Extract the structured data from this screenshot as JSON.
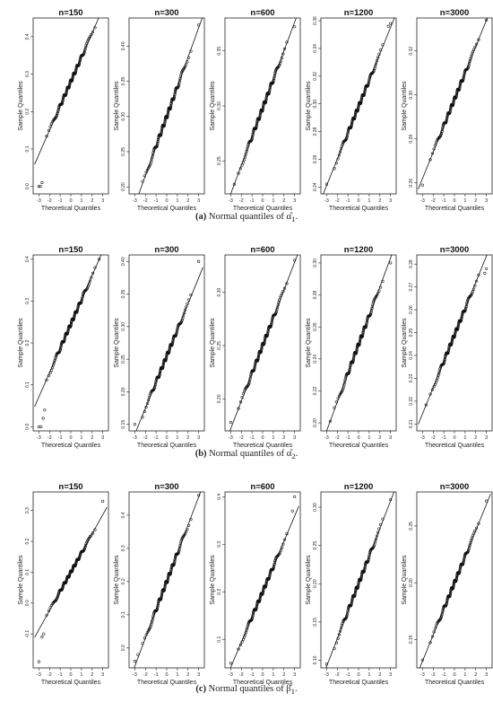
{
  "figure": {
    "axis_x_label": "Theoretical Quantiles",
    "axis_y_label": "Sample Quantiles",
    "x_ticks": [
      "-3",
      "-2",
      "-1",
      "0",
      "1",
      "2",
      "3"
    ]
  },
  "rows": [
    {
      "caption_letter": "(a)",
      "caption_text": "Normal quantiles of α̂",
      "caption_sub": "1",
      "panels": [
        {
          "title": "n=150",
          "ylim": [
            -0.02,
            0.45
          ],
          "y_ticks": [
            0.0,
            0.1,
            0.2,
            0.3,
            0.4
          ],
          "y_tick_labels": [
            "0.0",
            "0.1",
            "0.2",
            "0.3",
            "0.4"
          ],
          "mean": 0.28,
          "sd": 0.065,
          "lower_tail": [
            [
              -3.0,
              0.0
            ],
            [
              -2.85,
              0.0
            ],
            [
              -2.7,
              0.01
            ]
          ],
          "upper_tail": []
        },
        {
          "title": "n=300",
          "ylim": [
            0.19,
            0.44
          ],
          "y_ticks": [
            0.2,
            0.25,
            0.3,
            0.35,
            0.4
          ],
          "y_tick_labels": [
            "0.20",
            "0.25",
            "0.30",
            "0.35",
            "0.40"
          ],
          "mean": 0.3,
          "sd": 0.042,
          "lower_tail": [],
          "upper_tail": [
            [
              3.0,
              0.43
            ]
          ]
        },
        {
          "title": "n=600",
          "ylim": [
            0.22,
            0.38
          ],
          "y_ticks": [
            0.25,
            0.3,
            0.35
          ],
          "y_tick_labels": [
            "0.25",
            "0.30",
            "0.35"
          ],
          "mean": 0.298,
          "sd": 0.026,
          "lower_tail": [],
          "upper_tail": [
            [
              3.0,
              0.372
            ]
          ]
        },
        {
          "title": "n=1200",
          "ylim": [
            0.235,
            0.362
          ],
          "y_ticks": [
            0.24,
            0.26,
            0.28,
            0.3,
            0.32,
            0.34,
            0.36
          ],
          "y_tick_labels": [
            "0.24",
            "0.26",
            "0.28",
            "0.30",
            "0.32",
            "0.34",
            "0.36"
          ],
          "mean": 0.298,
          "sd": 0.019,
          "lower_tail": [
            [
              -3.0,
              0.242
            ]
          ],
          "upper_tail": [
            [
              2.8,
              0.356
            ],
            [
              3.0,
              0.358
            ]
          ]
        },
        {
          "title": "n=3000",
          "ylim": [
            0.255,
            0.335
          ],
          "y_ticks": [
            0.26,
            0.28,
            0.3,
            0.32
          ],
          "y_tick_labels": [
            "0.26",
            "0.28",
            "0.30",
            "0.32"
          ],
          "mean": 0.298,
          "sd": 0.012,
          "lower_tail": [
            [
              -3.0,
              0.259
            ]
          ],
          "upper_tail": [
            [
              3.0,
              0.334
            ]
          ]
        }
      ]
    },
    {
      "caption_letter": "(b)",
      "caption_text": "Normal quantiles of α̂",
      "caption_sub": "2",
      "panels": [
        {
          "title": "n=150",
          "ylim": [
            -0.01,
            0.41
          ],
          "y_ticks": [
            0.0,
            0.1,
            0.2,
            0.3,
            0.4
          ],
          "y_tick_labels": [
            "0.0",
            "0.1",
            "0.2",
            "0.3",
            "0.4"
          ],
          "mean": 0.245,
          "sd": 0.058,
          "lower_tail": [
            [
              -3.0,
              0.0
            ],
            [
              -2.8,
              0.0
            ],
            [
              -2.6,
              0.02
            ],
            [
              -2.45,
              0.04
            ]
          ],
          "upper_tail": []
        },
        {
          "title": "n=300",
          "ylim": [
            0.14,
            0.41
          ],
          "y_ticks": [
            0.15,
            0.2,
            0.25,
            0.3,
            0.35,
            0.4
          ],
          "y_tick_labels": [
            "0.15",
            "0.20",
            "0.25",
            "0.30",
            "0.35",
            "0.40"
          ],
          "mean": 0.255,
          "sd": 0.04,
          "lower_tail": [
            [
              -3.0,
              0.15
            ]
          ],
          "upper_tail": [
            [
              3.0,
              0.4
            ]
          ]
        },
        {
          "title": "n=600",
          "ylim": [
            0.17,
            0.335
          ],
          "y_ticks": [
            0.2,
            0.25,
            0.3
          ],
          "y_tick_labels": [
            "0.20",
            "0.25",
            "0.30"
          ],
          "mean": 0.25,
          "sd": 0.026,
          "lower_tail": [
            [
              -3.0,
              0.178
            ]
          ],
          "upper_tail": [
            [
              3.0,
              0.33
            ]
          ]
        },
        {
          "title": "n=1200",
          "ylim": [
            0.195,
            0.305
          ],
          "y_ticks": [
            0.2,
            0.22,
            0.24,
            0.26,
            0.28,
            0.3
          ],
          "y_tick_labels": [
            "0.20",
            "0.22",
            "0.24",
            "0.26",
            "0.28",
            "0.30"
          ],
          "mean": 0.249,
          "sd": 0.018,
          "lower_tail": [],
          "upper_tail": [
            [
              3.0,
              0.3
            ]
          ]
        },
        {
          "title": "n=3000",
          "ylim": [
            0.207,
            0.284
          ],
          "y_ticks": [
            0.21,
            0.22,
            0.23,
            0.24,
            0.25,
            0.26,
            0.27,
            0.28
          ],
          "y_tick_labels": [
            "0.21",
            "0.22",
            "0.23",
            "0.24",
            "0.25",
            "0.26",
            "0.27",
            "0.28"
          ],
          "mean": 0.249,
          "sd": 0.0115,
          "lower_tail": [],
          "upper_tail": [
            [
              2.85,
              0.276
            ],
            [
              3.0,
              0.278
            ]
          ]
        }
      ]
    },
    {
      "caption_letter": "(c)",
      "caption_text": "Normal quantiles of β̂",
      "caption_sub": "1",
      "panels": [
        {
          "title": "n=150",
          "ylim": [
            -0.21,
            0.36
          ],
          "y_ticks": [
            -0.1,
            0.0,
            0.1,
            0.2,
            0.3
          ],
          "y_tick_labels": [
            "-0.1",
            "0.0",
            "0.1",
            "0.2",
            "0.3"
          ],
          "mean": 0.1,
          "sd": 0.062,
          "lower_tail": [
            [
              -3.0,
              -0.19
            ],
            [
              -2.7,
              -0.11
            ],
            [
              -2.55,
              -0.1
            ]
          ],
          "upper_tail": [
            [
              3.0,
              0.33
            ]
          ]
        },
        {
          "title": "n=300",
          "ylim": [
            -0.06,
            0.47
          ],
          "y_ticks": [
            0.0,
            0.1,
            0.2,
            0.3,
            0.4
          ],
          "y_tick_labels": [
            "0.0",
            "0.1",
            "0.2",
            "0.3",
            "0.4"
          ],
          "mean": 0.2,
          "sd": 0.085,
          "lower_tail": [
            [
              -3.0,
              -0.04
            ],
            [
              -2.7,
              -0.02
            ]
          ],
          "upper_tail": [
            [
              3.0,
              0.46
            ]
          ]
        },
        {
          "title": "n=600",
          "ylim": [
            0.04,
            0.41
          ],
          "y_ticks": [
            0.1,
            0.2,
            0.3,
            0.4
          ],
          "y_tick_labels": [
            "0.1",
            "0.2",
            "0.3",
            "0.4"
          ],
          "mean": 0.2,
          "sd": 0.053,
          "lower_tail": [
            [
              -3.0,
              0.05
            ]
          ],
          "upper_tail": [
            [
              2.8,
              0.37
            ],
            [
              3.0,
              0.4
            ]
          ]
        },
        {
          "title": "n=1200",
          "ylim": [
            0.09,
            0.32
          ],
          "y_ticks": [
            0.1,
            0.15,
            0.2,
            0.25,
            0.3
          ],
          "y_tick_labels": [
            "0.10",
            "0.15",
            "0.20",
            "0.25",
            "0.30"
          ],
          "mean": 0.2,
          "sd": 0.036,
          "lower_tail": [
            [
              -3.0,
              0.095
            ]
          ],
          "upper_tail": [
            [
              3.0,
              0.31
            ]
          ]
        },
        {
          "title": "n=3000",
          "ylim": [
            0.125,
            0.28
          ],
          "y_ticks": [
            0.15,
            0.2,
            0.25
          ],
          "y_tick_labels": [
            "0.15",
            "0.20",
            "0.25"
          ],
          "mean": 0.2,
          "sd": 0.023,
          "lower_tail": [
            [
              -3.0,
              0.132
            ]
          ],
          "upper_tail": [
            [
              3.0,
              0.272
            ]
          ]
        }
      ]
    }
  ],
  "chart_data": [
    {
      "type": "scatter",
      "subtitle": "n=150",
      "xlabel": "Theoretical Quantiles",
      "ylabel": "Sample Quantiles",
      "xlim": [
        -3,
        3
      ],
      "ylim": [
        -0.02,
        0.45
      ]
    },
    {
      "type": "scatter",
      "subtitle": "n=300",
      "xlabel": "Theoretical Quantiles",
      "ylabel": "Sample Quantiles",
      "xlim": [
        -3,
        3
      ],
      "ylim": [
        0.19,
        0.44
      ]
    },
    {
      "type": "scatter",
      "subtitle": "n=600",
      "xlabel": "Theoretical Quantiles",
      "ylabel": "Sample Quantiles",
      "xlim": [
        -3,
        3
      ],
      "ylim": [
        0.22,
        0.38
      ]
    },
    {
      "type": "scatter",
      "subtitle": "n=1200",
      "xlabel": "Theoretical Quantiles",
      "ylabel": "Sample Quantiles",
      "xlim": [
        -3,
        3
      ],
      "ylim": [
        0.235,
        0.362
      ]
    },
    {
      "type": "scatter",
      "subtitle": "n=3000",
      "xlabel": "Theoretical Quantiles",
      "ylabel": "Sample Quantiles",
      "xlim": [
        -3,
        3
      ],
      "ylim": [
        0.255,
        0.335
      ]
    },
    {
      "type": "scatter",
      "subtitle": "n=150",
      "xlabel": "Theoretical Quantiles",
      "ylabel": "Sample Quantiles",
      "xlim": [
        -3,
        3
      ],
      "ylim": [
        -0.01,
        0.41
      ]
    },
    {
      "type": "scatter",
      "subtitle": "n=300",
      "xlabel": "Theoretical Quantiles",
      "ylabel": "Sample Quantiles",
      "xlim": [
        -3,
        3
      ],
      "ylim": [
        0.14,
        0.41
      ]
    },
    {
      "type": "scatter",
      "subtitle": "n=600",
      "xlabel": "Theoretical Quantiles",
      "ylabel": "Sample Quantiles",
      "xlim": [
        -3,
        3
      ],
      "ylim": [
        0.17,
        0.335
      ]
    },
    {
      "type": "scatter",
      "subtitle": "n=1200",
      "xlabel": "Theoretical Quantiles",
      "ylabel": "Sample Quantiles",
      "xlim": [
        -3,
        3
      ],
      "ylim": [
        0.195,
        0.305
      ]
    },
    {
      "type": "scatter",
      "subtitle": "n=3000",
      "xlabel": "Theoretical Quantiles",
      "ylabel": "Sample Quantiles",
      "xlim": [
        -3,
        3
      ],
      "ylim": [
        0.207,
        0.284
      ]
    },
    {
      "type": "scatter",
      "subtitle": "n=150",
      "xlabel": "Theoretical Quantiles",
      "ylabel": "Sample Quantiles",
      "xlim": [
        -3,
        3
      ],
      "ylim": [
        -0.21,
        0.36
      ]
    },
    {
      "type": "scatter",
      "subtitle": "n=300",
      "xlabel": "Theoretical Quantiles",
      "ylabel": "Sample Quantiles",
      "xlim": [
        -3,
        3
      ],
      "ylim": [
        -0.06,
        0.47
      ]
    },
    {
      "type": "scatter",
      "subtitle": "n=600",
      "xlabel": "Theoretical Quantiles",
      "ylabel": "Sample Quantiles",
      "xlim": [
        -3,
        3
      ],
      "ylim": [
        0.04,
        0.41
      ]
    },
    {
      "type": "scatter",
      "subtitle": "n=1200",
      "xlabel": "Theoretical Quantiles",
      "ylabel": "Sample Quantiles",
      "xlim": [
        -3,
        3
      ],
      "ylim": [
        0.09,
        0.32
      ]
    },
    {
      "type": "scatter",
      "subtitle": "n=3000",
      "xlabel": "Theoretical Quantiles",
      "ylabel": "Sample Quantiles",
      "xlim": [
        -3,
        3
      ],
      "ylim": [
        0.125,
        0.28
      ]
    }
  ]
}
